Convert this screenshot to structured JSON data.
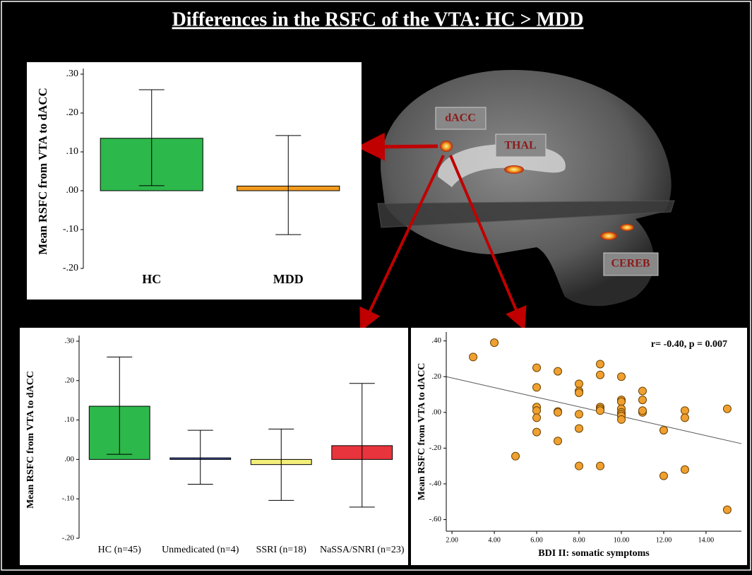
{
  "title": "Differences in the RSFC of the VTA: HC > MDD",
  "brain_labels": [
    "dACC",
    "THAL",
    "CEREB"
  ],
  "chart_data": [
    {
      "type": "bar",
      "ylabel": "Mean RSFC from VTA to dACC",
      "categories": [
        "HC",
        "MDD"
      ],
      "values": [
        0.135,
        0.012
      ],
      "error_low": [
        0.013,
        -0.113
      ],
      "error_high": [
        0.26,
        0.142
      ],
      "colors": [
        "#2db84b",
        "#f39b1e"
      ],
      "ylim": [
        -0.2,
        0.3
      ],
      "yticks": [
        {
          "value": 0.3,
          "label": ".30"
        },
        {
          "value": 0.2,
          "label": ".20"
        },
        {
          "value": 0.1,
          "label": ".10"
        },
        {
          "value": 0,
          "label": ".00"
        },
        {
          "value": -0.1,
          "label": "-.10"
        },
        {
          "value": -0.2,
          "label": "-.20"
        }
      ]
    },
    {
      "type": "bar",
      "ylabel": "Mean RSFC from VTA to dACC",
      "categories": [
        "HC (n=45)",
        "Unmedicated (n=4)",
        "SSRI (n=18)",
        "NaSSA/SNRI (n=23)"
      ],
      "values": [
        0.135,
        0.004,
        -0.013,
        0.035
      ],
      "error_low": [
        0.013,
        -0.063,
        -0.104,
        -0.121
      ],
      "error_high": [
        0.26,
        0.074,
        0.077,
        0.193
      ],
      "colors": [
        "#2db84b",
        "#3b4fa0",
        "#f3ef7a",
        "#e8343c"
      ],
      "ylim": [
        -0.2,
        0.3
      ],
      "yticks": [
        {
          "value": 0.3,
          "label": ".30"
        },
        {
          "value": 0.2,
          "label": ".20"
        },
        {
          "value": 0.1,
          "label": ".10"
        },
        {
          "value": 0,
          "label": ".00"
        },
        {
          "value": -0.1,
          "label": "-.10"
        },
        {
          "value": -0.2,
          "label": "-.20"
        }
      ]
    },
    {
      "type": "scatter",
      "ylabel": "Mean RSFC from VTA to dACC",
      "xlabel": "BDI II: somatic symptoms",
      "annotation": "r= -0.40, p = 0.007",
      "color": "#f0a030",
      "x": [
        3,
        4,
        5,
        6,
        6,
        6,
        6,
        6,
        6,
        7,
        7,
        7,
        7,
        8,
        8,
        8,
        8,
        8,
        8,
        9,
        9,
        9,
        9,
        9,
        9,
        10,
        10,
        10,
        10,
        10,
        10,
        10,
        10,
        11,
        11,
        11,
        11,
        12,
        12,
        13,
        13,
        13,
        15,
        15
      ],
      "values": [
        0.31,
        0.39,
        -0.245,
        0.25,
        0.14,
        0.03,
        0.01,
        -0.03,
        -0.11,
        0.23,
        0.005,
        0.0,
        -0.16,
        0.16,
        0.12,
        0.11,
        -0.01,
        -0.09,
        -0.3,
        0.27,
        0.21,
        0.03,
        0.02,
        0.01,
        -0.3,
        0.2,
        0.07,
        0.06,
        0.02,
        0.0,
        -0.01,
        -0.02,
        -0.04,
        0.12,
        0.07,
        0.0,
        0.01,
        -0.1,
        -0.355,
        0.01,
        -0.03,
        -0.32,
        0.02,
        -0.545
      ],
      "fit_line": {
        "x": [
          1.73,
          15.67
        ],
        "values": [
          0.2,
          -0.175
        ]
      },
      "xlim": [
        1.73,
        15.67
      ],
      "ylim": [
        -0.665,
        0.45
      ],
      "xticks": [
        {
          "value": 2,
          "label": "2.00"
        },
        {
          "value": 4,
          "label": "4.00"
        },
        {
          "value": 6,
          "label": "6.00"
        },
        {
          "value": 8,
          "label": "8.00"
        },
        {
          "value": 10,
          "label": "10.00"
        },
        {
          "value": 12,
          "label": "12.00"
        },
        {
          "value": 14,
          "label": "14.00"
        }
      ],
      "yticks": [
        {
          "value": 0.4,
          "label": ".40"
        },
        {
          "value": 0.2,
          "label": ".20"
        },
        {
          "value": 0,
          "label": ".00"
        },
        {
          "value": -0.2,
          "label": "-.20"
        },
        {
          "value": -0.4,
          "label": "-.40"
        },
        {
          "value": -0.6,
          "label": "-.60"
        }
      ]
    }
  ]
}
